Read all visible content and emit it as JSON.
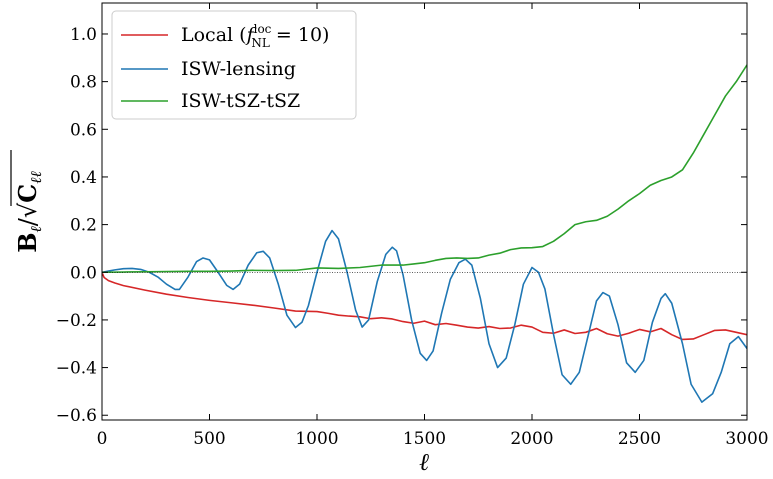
{
  "chart_data": {
    "type": "line",
    "xlabel": "ℓ",
    "ylabel": {
      "numerator": "B",
      "numerator_sub": "ℓ",
      "denominator": "C",
      "denominator_sub": "ℓℓ"
    },
    "xlim": [
      0,
      3000
    ],
    "ylim": [
      -0.62,
      1.13
    ],
    "x_ticks": [
      0,
      500,
      1000,
      1500,
      2000,
      2500,
      3000
    ],
    "x_tick_labels": [
      "0",
      "500",
      "1000",
      "1500",
      "2000",
      "2500",
      "3000"
    ],
    "y_ticks": [
      -0.6,
      -0.4,
      -0.2,
      0.0,
      0.2,
      0.4,
      0.6,
      0.8,
      1.0
    ],
    "y_tick_labels": [
      "−0.6",
      "−0.4",
      "−0.2",
      "0.0",
      "0.2",
      "0.4",
      "0.6",
      "0.8",
      "1.0"
    ],
    "grid": false,
    "zero_line": true,
    "legend_position": "top-left",
    "series": [
      {
        "name": "Local (",
        "name_math": "f",
        "name_sup": "loc",
        "name_sub": "NL",
        "name_tail": " = 10)",
        "color": "#d62728",
        "x": [
          2,
          10,
          30,
          60,
          100,
          200,
          300,
          400,
          500,
          600,
          700,
          800,
          900,
          1000,
          1050,
          1100,
          1150,
          1200,
          1250,
          1300,
          1350,
          1400,
          1450,
          1500,
          1550,
          1600,
          1650,
          1700,
          1750,
          1800,
          1850,
          1900,
          1950,
          2000,
          2050,
          2100,
          2150,
          2200,
          2250,
          2300,
          2350,
          2400,
          2450,
          2500,
          2550,
          2600,
          2650,
          2700,
          2750,
          2800,
          2850,
          2900,
          2950,
          3000
        ],
        "y": [
          -0.005,
          -0.022,
          -0.035,
          -0.045,
          -0.056,
          -0.075,
          -0.092,
          -0.106,
          -0.118,
          -0.128,
          -0.138,
          -0.15,
          -0.163,
          -0.165,
          -0.172,
          -0.18,
          -0.184,
          -0.187,
          -0.195,
          -0.191,
          -0.196,
          -0.207,
          -0.214,
          -0.205,
          -0.22,
          -0.215,
          -0.222,
          -0.23,
          -0.234,
          -0.228,
          -0.236,
          -0.234,
          -0.222,
          -0.23,
          -0.252,
          -0.256,
          -0.242,
          -0.257,
          -0.252,
          -0.236,
          -0.258,
          -0.268,
          -0.256,
          -0.24,
          -0.25,
          -0.236,
          -0.262,
          -0.282,
          -0.28,
          -0.262,
          -0.244,
          -0.242,
          -0.252,
          -0.262
        ]
      },
      {
        "name": "ISW-lensing",
        "color": "#1f77b4",
        "x": [
          2,
          30,
          60,
          100,
          140,
          180,
          220,
          260,
          300,
          340,
          360,
          400,
          440,
          470,
          500,
          540,
          580,
          610,
          640,
          680,
          720,
          750,
          780,
          820,
          860,
          900,
          930,
          960,
          1000,
          1040,
          1070,
          1100,
          1140,
          1180,
          1210,
          1240,
          1280,
          1320,
          1350,
          1370,
          1400,
          1440,
          1480,
          1510,
          1540,
          1580,
          1620,
          1660,
          1690,
          1720,
          1760,
          1800,
          1840,
          1880,
          1920,
          1960,
          2000,
          2030,
          2060,
          2100,
          2140,
          2180,
          2220,
          2260,
          2300,
          2330,
          2360,
          2400,
          2440,
          2480,
          2520,
          2560,
          2600,
          2620,
          2650,
          2700,
          2740,
          2790,
          2840,
          2880,
          2920,
          2960,
          3000
        ],
        "y": [
          0.0,
          0.005,
          0.01,
          0.015,
          0.016,
          0.012,
          0.0,
          -0.02,
          -0.05,
          -0.072,
          -0.072,
          -0.02,
          0.045,
          0.06,
          0.052,
          0.0,
          -0.055,
          -0.072,
          -0.05,
          0.03,
          0.082,
          0.088,
          0.06,
          -0.05,
          -0.18,
          -0.232,
          -0.21,
          -0.14,
          0.0,
          0.13,
          0.175,
          0.14,
          0.0,
          -0.16,
          -0.23,
          -0.2,
          -0.04,
          0.075,
          0.105,
          0.09,
          -0.01,
          -0.2,
          -0.34,
          -0.37,
          -0.33,
          -0.17,
          -0.03,
          0.04,
          0.055,
          0.03,
          -0.11,
          -0.3,
          -0.4,
          -0.36,
          -0.22,
          -0.05,
          0.02,
          0.0,
          -0.07,
          -0.26,
          -0.43,
          -0.47,
          -0.42,
          -0.27,
          -0.12,
          -0.085,
          -0.1,
          -0.22,
          -0.38,
          -0.42,
          -0.37,
          -0.21,
          -0.11,
          -0.09,
          -0.13,
          -0.3,
          -0.47,
          -0.545,
          -0.51,
          -0.42,
          -0.3,
          -0.27,
          -0.32
        ]
      },
      {
        "name": "ISW-tSZ-tSZ",
        "color": "#2ca02c",
        "x": [
          2,
          100,
          200,
          300,
          400,
          500,
          600,
          700,
          800,
          900,
          1000,
          1100,
          1200,
          1300,
          1400,
          1450,
          1500,
          1550,
          1600,
          1650,
          1700,
          1750,
          1800,
          1850,
          1900,
          1950,
          2000,
          2050,
          2100,
          2150,
          2200,
          2250,
          2300,
          2350,
          2400,
          2450,
          2500,
          2550,
          2600,
          2650,
          2700,
          2750,
          2800,
          2850,
          2900,
          2950,
          3000
        ],
        "y": [
          0.0,
          0.001,
          0.002,
          0.003,
          0.004,
          0.004,
          0.005,
          0.008,
          0.007,
          0.008,
          0.018,
          0.016,
          0.02,
          0.03,
          0.03,
          0.035,
          0.04,
          0.05,
          0.058,
          0.06,
          0.058,
          0.06,
          0.072,
          0.08,
          0.095,
          0.102,
          0.103,
          0.108,
          0.13,
          0.162,
          0.2,
          0.212,
          0.218,
          0.235,
          0.265,
          0.3,
          0.33,
          0.365,
          0.385,
          0.4,
          0.43,
          0.5,
          0.58,
          0.66,
          0.74,
          0.8,
          0.87
        ]
      }
    ]
  }
}
